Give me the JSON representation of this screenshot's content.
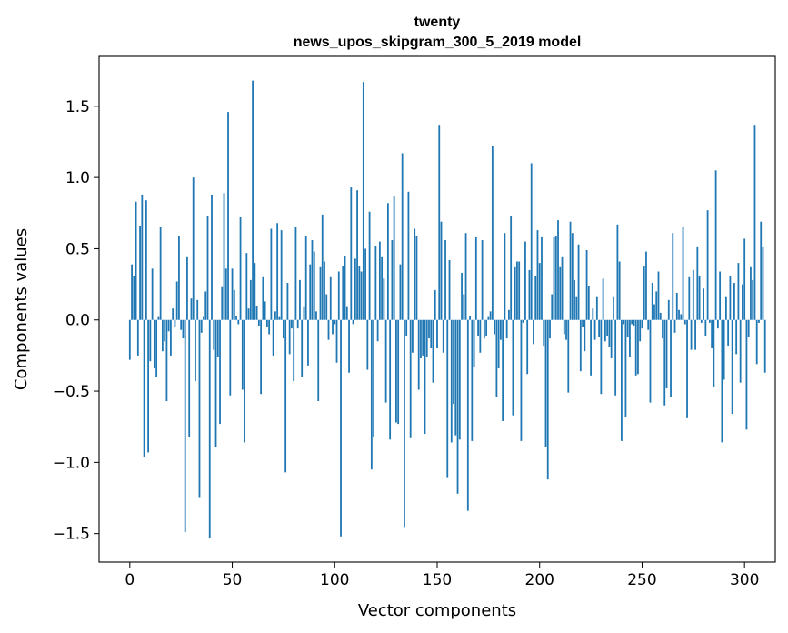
{
  "chart_data": {
    "type": "bar",
    "title_line1": "twenty",
    "title_line2": "news_upos_skipgram_300_5_2019 model",
    "xlabel": "Vector components",
    "ylabel": "Components values",
    "xlim": [
      -15,
      315
    ],
    "ylim": [
      -1.7,
      1.85
    ],
    "x_ticks": [
      0,
      50,
      100,
      150,
      200,
      250,
      300
    ],
    "y_ticks": [
      -1.5,
      -1.0,
      -0.5,
      0.0,
      0.5,
      1.0,
      1.5
    ],
    "x_tick_labels": [
      "0",
      "50",
      "100",
      "150",
      "200",
      "250",
      "300"
    ],
    "y_tick_labels": [
      "−1.5",
      "−1.0",
      "−0.5",
      "0.0",
      "0.5",
      "1.0",
      "1.5"
    ],
    "bar_color": "#1f77b4",
    "values": [
      -0.28,
      0.39,
      0.31,
      0.83,
      -0.25,
      0.66,
      0.88,
      -0.96,
      0.84,
      -0.93,
      -0.29,
      0.36,
      -0.34,
      -0.4,
      0.02,
      0.65,
      -0.22,
      -0.15,
      -0.57,
      -0.08,
      -0.25,
      0.08,
      -0.05,
      0.27,
      0.59,
      -0.07,
      -0.13,
      -1.49,
      0.44,
      -0.82,
      0.15,
      1.0,
      -0.43,
      0.14,
      -1.25,
      -0.09,
      0.02,
      0.2,
      0.73,
      -1.53,
      0.88,
      -0.21,
      -0.89,
      -0.26,
      -0.73,
      0.23,
      0.89,
      0.36,
      1.46,
      -0.53,
      0.36,
      0.21,
      0.03,
      -0.03,
      0.72,
      -0.49,
      -0.86,
      0.47,
      0.08,
      0.28,
      1.68,
      0.4,
      0.1,
      -0.04,
      -0.52,
      0.3,
      0.13,
      -0.05,
      -0.1,
      0.64,
      -0.25,
      0.06,
      0.68,
      0.02,
      0.63,
      -0.13,
      -1.07,
      0.26,
      -0.24,
      -0.06,
      -0.43,
      0.65,
      -0.06,
      0.28,
      -0.4,
      0.09,
      0.59,
      -0.32,
      0.39,
      0.56,
      0.48,
      0.06,
      -0.57,
      0.37,
      0.74,
      0.41,
      0.18,
      -0.14,
      0.3,
      -0.1,
      -0.03,
      -0.3,
      0.34,
      -1.52,
      0.38,
      0.45,
      0.09,
      -0.37,
      0.93,
      -0.03,
      0.43,
      0.91,
      0.38,
      0.34,
      1.67,
      0.5,
      -0.35,
      0.76,
      -1.05,
      -0.82,
      0.52,
      -0.15,
      0.55,
      0.44,
      0.29,
      -0.58,
      0.82,
      -0.84,
      0.56,
      0.87,
      -0.72,
      -0.73,
      0.39,
      1.17,
      -1.46,
      -0.11,
      0.9,
      -0.83,
      -0.23,
      0.64,
      0.59,
      -0.49,
      -0.27,
      -0.25,
      -0.8,
      -0.26,
      -0.13,
      -0.2,
      -0.44,
      0.21,
      -0.2,
      1.37,
      0.69,
      -0.23,
      0.56,
      -1.11,
      0.42,
      -0.86,
      -0.59,
      -0.81,
      -1.22,
      -0.84,
      0.33,
      0.18,
      0.61,
      -1.34,
      0.03,
      -0.85,
      -0.33,
      0.58,
      -0.11,
      -0.23,
      0.56,
      -0.13,
      -0.11,
      0.02,
      0.06,
      1.22,
      -0.1,
      -0.54,
      -0.34,
      -0.14,
      -0.71,
      0.61,
      -0.13,
      0.07,
      0.73,
      -0.67,
      0.37,
      0.41,
      0.41,
      -0.85,
      -0.02,
      0.55,
      -0.38,
      0.35,
      1.1,
      -0.17,
      0.31,
      0.63,
      0.4,
      0.58,
      -0.18,
      -0.89,
      -1.12,
      -0.13,
      0.18,
      0.58,
      0.59,
      0.7,
      0.37,
      0.44,
      -0.1,
      -0.14,
      -0.51,
      0.69,
      0.61,
      0.28,
      0.16,
      0.53,
      -0.36,
      -0.05,
      -0.22,
      0.49,
      0.24,
      -0.39,
      0.08,
      -0.14,
      0.16,
      -0.12,
      -0.52,
      0.29,
      -0.15,
      -0.11,
      -0.19,
      -0.27,
      0.16,
      -0.53,
      0.67,
      0.41,
      -0.85,
      -0.03,
      -0.68,
      -0.12,
      -0.26,
      -0.03,
      -0.04,
      -0.39,
      -0.38,
      -0.15,
      -0.06,
      0.38,
      0.48,
      -0.07,
      -0.58,
      0.26,
      0.11,
      0.2,
      0.34,
      0.05,
      -0.13,
      -0.6,
      -0.48,
      0.14,
      -0.54,
      0.61,
      -0.09,
      0.19,
      0.07,
      0.04,
      0.65,
      -0.03,
      -0.69,
      0.3,
      -0.21,
      0.35,
      -0.21,
      0.51,
      0.31,
      -0.02,
      0.22,
      -0.11,
      0.77,
      -0.02,
      -0.2,
      -0.47,
      1.05,
      -0.06,
      0.34,
      -0.86,
      -0.42,
      0.16,
      -0.18,
      0.31,
      -0.66,
      0.26,
      -0.24,
      0.4,
      -0.44,
      0.25,
      0.57,
      -0.77,
      -0.12,
      0.37,
      0.28,
      1.37,
      -0.31,
      -0.02,
      0.69,
      0.51,
      -0.37
    ]
  }
}
